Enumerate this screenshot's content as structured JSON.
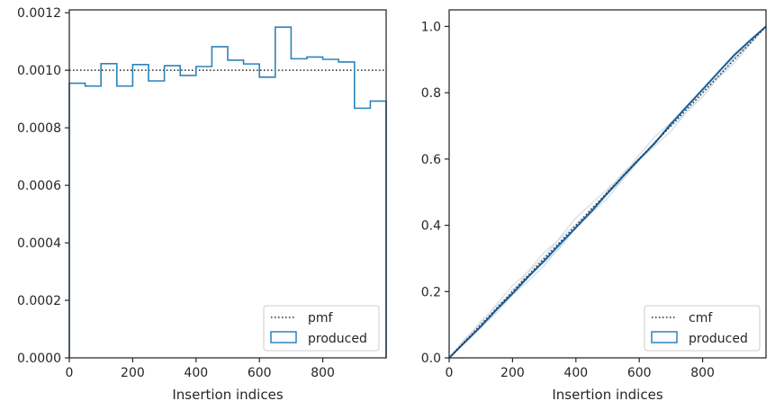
{
  "colors": {
    "hist": "#2b83ba",
    "ref": "#262626",
    "cdf_main": "#1f4f8f",
    "cdf_faint": "#d3dbe4",
    "frame": "#262626",
    "legend_border": "#cccccc"
  },
  "chart_data": [
    {
      "type": "histogram",
      "title": "",
      "xlabel": "Insertion indices",
      "ylabel": "",
      "xlim": [
        0,
        1000
      ],
      "ylim": [
        0,
        0.00121
      ],
      "xticks": [
        "0",
        "200",
        "400",
        "600",
        "800"
      ],
      "yticks": [
        "0.0000",
        "0.0002",
        "0.0004",
        "0.0006",
        "0.0008",
        "0.0010",
        "0.0012"
      ],
      "bin_edges": [
        0,
        50,
        100,
        150,
        200,
        250,
        300,
        350,
        400,
        450,
        500,
        550,
        600,
        650,
        700,
        750,
        800,
        850,
        900,
        950,
        1000
      ],
      "values": [
        0.000955,
        0.000945,
        0.001023,
        0.000945,
        0.00102,
        0.000963,
        0.001016,
        0.000982,
        0.001013,
        0.001082,
        0.001035,
        0.001022,
        0.000976,
        0.00115,
        0.00104,
        0.001046,
        0.001038,
        0.001029,
        0.000868,
        0.000893
      ],
      "reference_line": {
        "y": 0.001,
        "style": "dotted"
      },
      "legend": {
        "position": "lower-right",
        "entries": [
          "pmf",
          "produced"
        ]
      },
      "grid": false
    },
    {
      "type": "line",
      "title": "",
      "xlabel": "Insertion indices",
      "ylabel": "",
      "xlim": [
        0,
        1000
      ],
      "ylim": [
        0,
        1.05
      ],
      "xticks": [
        "0",
        "200",
        "400",
        "600",
        "800"
      ],
      "yticks": [
        "0.0",
        "0.2",
        "0.4",
        "0.6",
        "0.8",
        "1.0"
      ],
      "reference_line": {
        "from": [
          0,
          0
        ],
        "to": [
          1000,
          1
        ],
        "style": "dotted"
      },
      "produced_cdf": {
        "x": [
          0,
          50,
          100,
          150,
          200,
          250,
          300,
          350,
          400,
          450,
          500,
          550,
          600,
          650,
          700,
          750,
          800,
          850,
          900,
          950,
          1000
        ],
        "y": [
          0,
          0.0478,
          0.095,
          0.146,
          0.194,
          0.245,
          0.293,
          0.344,
          0.393,
          0.443,
          0.497,
          0.549,
          0.6,
          0.649,
          0.706,
          0.758,
          0.81,
          0.862,
          0.914,
          0.958,
          1.0
        ]
      },
      "legend": {
        "position": "lower-right",
        "entries": [
          "cmf",
          "produced"
        ]
      },
      "grid": false
    }
  ]
}
